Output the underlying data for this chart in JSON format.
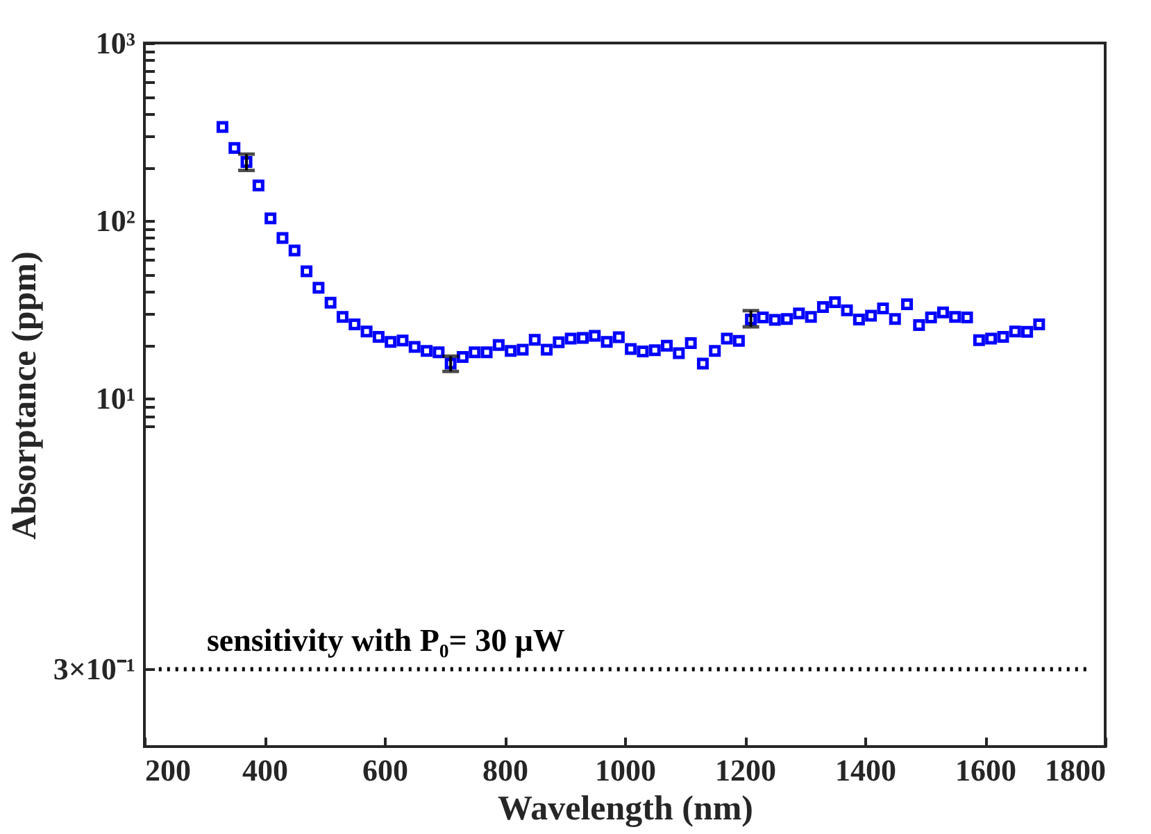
{
  "chart_data": {
    "type": "scatter",
    "xlabel": "Wavelength (nm)",
    "ylabel": "Absorptance (ppm)",
    "log": true,
    "marker": "square",
    "grid": false,
    "xlim": [
      200,
      1800
    ],
    "xticks": [
      200,
      400,
      600,
      800,
      1000,
      1200,
      1400,
      1600,
      1800
    ],
    "ylim": [
      0.11,
      1000
    ],
    "yticks": [
      {
        "value": 0.3,
        "label": "3×10⁻¹"
      },
      {
        "value": 7,
        "label": null
      },
      {
        "value": 8,
        "label": null
      },
      {
        "value": 9,
        "label": null
      },
      {
        "value": 10,
        "label": "10¹"
      },
      {
        "value": 20,
        "label": null
      },
      {
        "value": 30,
        "label": null
      },
      {
        "value": 40,
        "label": null
      },
      {
        "value": 50,
        "label": null
      },
      {
        "value": 60,
        "label": null
      },
      {
        "value": 70,
        "label": null
      },
      {
        "value": 80,
        "label": null
      },
      {
        "value": 90,
        "label": null
      },
      {
        "value": 100,
        "label": "10²"
      },
      {
        "value": 200,
        "label": null
      },
      {
        "value": 300,
        "label": null
      },
      {
        "value": 400,
        "label": null
      },
      {
        "value": 500,
        "label": null
      },
      {
        "value": 600,
        "label": null
      },
      {
        "value": 700,
        "label": null
      },
      {
        "value": 800,
        "label": null
      },
      {
        "value": 900,
        "label": null
      },
      {
        "value": 1000,
        "label": "10³"
      }
    ],
    "x": [
      330,
      350,
      370,
      390,
      410,
      430,
      450,
      470,
      490,
      510,
      530,
      550,
      570,
      590,
      610,
      630,
      650,
      670,
      690,
      710,
      730,
      750,
      770,
      790,
      810,
      830,
      850,
      870,
      890,
      910,
      930,
      950,
      970,
      990,
      1010,
      1030,
      1050,
      1070,
      1090,
      1110,
      1130,
      1150,
      1170,
      1190,
      1210,
      1230,
      1250,
      1270,
      1290,
      1310,
      1330,
      1350,
      1370,
      1390,
      1410,
      1430,
      1450,
      1470,
      1490,
      1510,
      1530,
      1550,
      1570,
      1590,
      1610,
      1630,
      1650,
      1670,
      1690
    ],
    "series": [
      {
        "color": "#0000ff",
        "values": [
          337,
          257,
          214,
          158,
          103,
          80,
          68,
          52,
          42,
          34.6,
          28.8,
          26.1,
          23.8,
          22.2,
          20.8,
          21.2,
          19.5,
          18.5,
          18.2,
          15.7,
          17.1,
          18.2,
          18.2,
          20.0,
          18.5,
          18.8,
          21.4,
          18.8,
          20.7,
          21.7,
          21.9,
          22.5,
          20.8,
          22.1,
          19.0,
          18.4,
          18.7,
          19.8,
          18.0,
          20.5,
          15.7,
          18.5,
          21.7,
          21.1,
          27.8,
          28.6,
          27.7,
          28.0,
          30.1,
          28.8,
          32.7,
          34.8,
          31.3,
          27.8,
          29.2,
          32.1,
          28.0,
          33.9,
          25.9,
          28.6,
          30.5,
          28.8,
          28.6,
          21.3,
          21.7,
          22.2,
          23.8,
          23.7,
          26.1
        ],
        "errors": [
          null,
          null,
          [
            192,
            237
          ],
          null,
          null,
          null,
          null,
          null,
          null,
          null,
          null,
          null,
          null,
          null,
          null,
          null,
          null,
          null,
          null,
          [
            14.2,
            17.3
          ],
          null,
          null,
          null,
          null,
          null,
          null,
          null,
          null,
          null,
          null,
          null,
          null,
          null,
          null,
          null,
          null,
          null,
          null,
          null,
          null,
          null,
          null,
          null,
          null,
          [
            25.3,
            31.2
          ],
          null,
          null,
          null,
          null,
          null,
          null,
          null,
          null,
          null,
          null,
          null,
          null,
          null,
          null,
          null,
          null,
          null,
          null,
          null,
          null,
          null,
          null,
          null,
          null
        ]
      }
    ],
    "ref_lines": [
      {
        "axis": "y",
        "value": 0.3,
        "label": "sensitivity with P₀= 30 μW",
        "color": "#000000",
        "line_style": "dotted"
      }
    ]
  }
}
